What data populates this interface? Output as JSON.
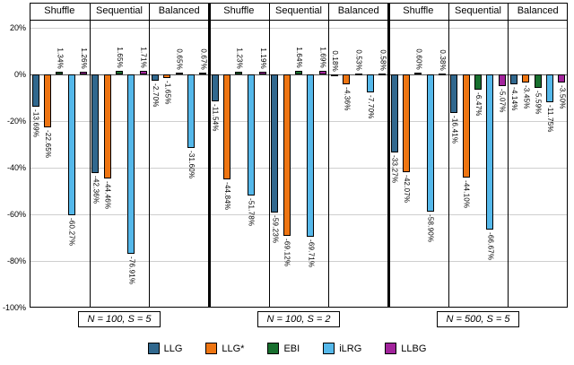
{
  "chart_data": {
    "type": "bar",
    "title": "",
    "xlabel": "",
    "ylabel": "",
    "unit": "%",
    "grid": "horizontal",
    "ylim": [
      -100,
      24
    ],
    "y_tick_values": [
      20,
      0,
      -20,
      -40,
      -60,
      -80,
      -100
    ],
    "y_tick_labels": [
      "20%",
      "0%",
      "-20%",
      "-40%",
      "-60%",
      "-80%",
      "-100%"
    ],
    "series": [
      "LLG",
      "LLG*",
      "EBI",
      "iLRG",
      "LLBG"
    ],
    "series_colors": [
      "#31688e",
      "#ee7512",
      "#186f2e",
      "#55b8ea",
      "#a2249c"
    ],
    "group_labels": [
      "Shuffle",
      "Sequential",
      "Balanced"
    ],
    "panels": [
      {
        "caption": "N = 100, S = 5",
        "groups": [
          {
            "label": "Shuffle",
            "values": [
              -13.69,
              -22.65,
              1.34,
              -60.27,
              1.26
            ],
            "bar_labels": [
              "-13.69%",
              "-22.65%",
              "1.34%",
              "-60.27%",
              "1.26%"
            ]
          },
          {
            "label": "Sequential",
            "values": [
              -42.36,
              -44.46,
              1.65,
              -76.91,
              1.71
            ],
            "bar_labels": [
              "-42.36%",
              "-44.46%",
              "1.65%",
              "-76.91%",
              "1.71%"
            ]
          },
          {
            "label": "Balanced",
            "values": [
              -2.7,
              -1.65,
              0.65,
              -31.6,
              0.67
            ],
            "bar_labels": [
              "-2.70%",
              "-1.65%",
              "0.65%",
              "-31.60%",
              "0.67%"
            ]
          }
        ]
      },
      {
        "caption": "N = 100, S = 2",
        "groups": [
          {
            "label": "Shuffle",
            "values": [
              -11.54,
              -44.84,
              1.23,
              -51.78,
              1.19
            ],
            "bar_labels": [
              "-11.54%",
              "-44.84%",
              "1.23%",
              "-51.78%",
              "1.19%"
            ]
          },
          {
            "label": "Sequential",
            "values": [
              -59.23,
              -69.12,
              1.64,
              -69.71,
              1.69
            ],
            "bar_labels": [
              "-59.23%",
              "-69.12%",
              "1.64%",
              "-69.71%",
              "1.69%"
            ]
          },
          {
            "label": "Balanced",
            "values": [
              0.18,
              -4.36,
              0.53,
              -7.7,
              0.58
            ],
            "bar_labels": [
              "0.18%",
              "-4.36%",
              "0.53%",
              "-7.70%",
              "0.58%"
            ]
          }
        ]
      },
      {
        "caption": "N = 500, S = 5",
        "groups": [
          {
            "label": "Shuffle",
            "values": [
              -33.27,
              -42.07,
              0.6,
              -58.9,
              0.38
            ],
            "bar_labels": [
              "-33.27%",
              "-42.07%",
              "0.60%",
              "-58.90%",
              "0.38%"
            ]
          },
          {
            "label": "Sequential",
            "values": [
              -16.41,
              -44.1,
              -6.47,
              -66.67,
              -5.07
            ],
            "bar_labels": [
              "-16.41%",
              "-44.10%",
              "-6.47%",
              "-66.67%",
              "-5.07%"
            ]
          },
          {
            "label": "Balanced",
            "values": [
              -4.14,
              -3.45,
              -5.59,
              -11.75,
              -3.5
            ],
            "bar_labels": [
              "-4.14%",
              "-3.45%",
              "-5.59%",
              "-11.75%",
              "-3.50%"
            ]
          }
        ]
      }
    ],
    "legend": {
      "position": "bottom",
      "entries": [
        "LLG",
        "LLG*",
        "EBI",
        "iLRG",
        "LLBG"
      ]
    }
  }
}
